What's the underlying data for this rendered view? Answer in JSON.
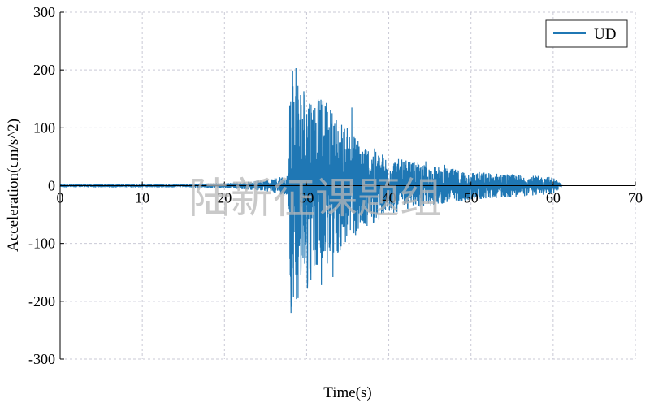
{
  "chart_data": {
    "type": "line",
    "title": "",
    "xlabel": "Time(s)",
    "ylabel": "Acceleration(cm/s^2)",
    "xlim": [
      0,
      70
    ],
    "ylim": [
      -300,
      300
    ],
    "xticks": [
      0,
      10,
      20,
      30,
      40,
      50,
      60,
      70
    ],
    "yticks": [
      -300,
      -200,
      -100,
      0,
      100,
      200,
      300
    ],
    "grid": true,
    "legend_position": "top-right",
    "series": [
      {
        "name": "UD",
        "color": "#1f77b4",
        "envelope": [
          {
            "t": 0,
            "amp": 3
          },
          {
            "t": 15,
            "amp": 3
          },
          {
            "t": 22,
            "amp": 6
          },
          {
            "t": 26,
            "amp": 12
          },
          {
            "t": 27.8,
            "amp": 20
          },
          {
            "t": 28.0,
            "amp": 215
          },
          {
            "t": 29.5,
            "amp": 185
          },
          {
            "t": 31,
            "amp": 160
          },
          {
            "t": 33,
            "amp": 135
          },
          {
            "t": 35,
            "amp": 100
          },
          {
            "t": 37,
            "amp": 75
          },
          {
            "t": 40,
            "amp": 50
          },
          {
            "t": 45,
            "amp": 35
          },
          {
            "t": 50,
            "amp": 25
          },
          {
            "t": 55,
            "amp": 20
          },
          {
            "t": 60,
            "amp": 15
          },
          {
            "t": 61,
            "amp": 3
          },
          {
            "t": 61.1,
            "amp": 0
          }
        ],
        "peaks": [
          {
            "t": 28.1,
            "value": -220
          },
          {
            "t": 28.3,
            "value": 199
          },
          {
            "t": 28.7,
            "value": 203
          },
          {
            "t": 29.3,
            "value": -155
          },
          {
            "t": 29.8,
            "value": 157
          },
          {
            "t": 30.1,
            "value": -178
          },
          {
            "t": 31.4,
            "value": 149
          },
          {
            "t": 31.8,
            "value": -172
          },
          {
            "t": 32.4,
            "value": 143
          },
          {
            "t": 33.2,
            "value": -158
          },
          {
            "t": 35.5,
            "value": 135
          },
          {
            "t": 44.5,
            "value": 42
          },
          {
            "t": 46.8,
            "value": 36
          }
        ]
      }
    ]
  },
  "watermark": "陆新征课题组"
}
